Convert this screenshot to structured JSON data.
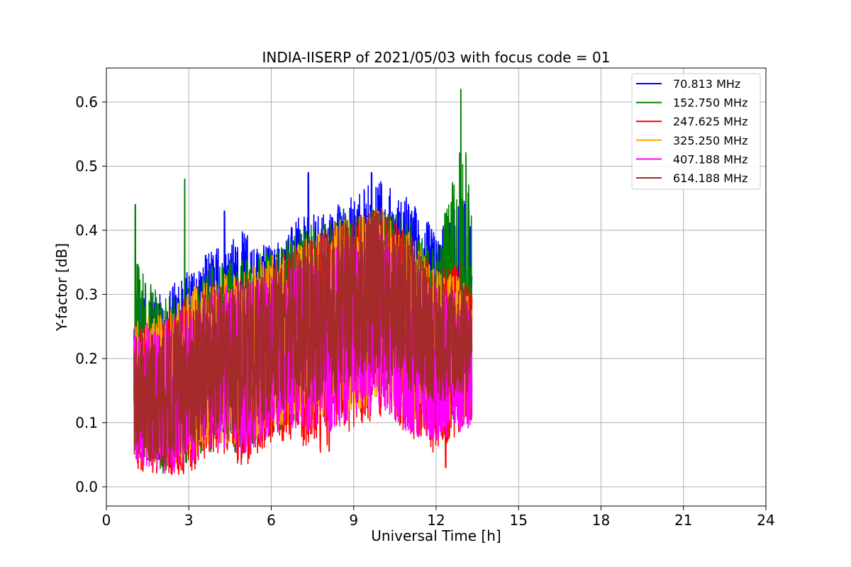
{
  "chart_data": {
    "type": "line",
    "title": "INDIA-IISERP of 2021/05/03 with focus code = 01",
    "xlabel": "Universal Time [h]",
    "ylabel": "Y-factor [dB]",
    "xlim": [
      0,
      24
    ],
    "ylim": [
      -0.03,
      0.653
    ],
    "x_ticks": [
      0,
      3,
      6,
      9,
      12,
      15,
      18,
      21,
      24
    ],
    "y_ticks": [
      0.0,
      0.1,
      0.2,
      0.3,
      0.4,
      0.5,
      0.6
    ],
    "y_tick_labels": [
      "0.0",
      "0.1",
      "0.2",
      "0.3",
      "0.4",
      "0.5",
      "0.6"
    ],
    "grid": true,
    "legend_position": "top-right",
    "x_range_of_data": [
      1.0,
      13.3
    ],
    "series": [
      {
        "name": "70.813 MHz",
        "color": "#0000ff",
        "profile_x": [
          1.0,
          2.0,
          3.0,
          4.0,
          5.0,
          6.0,
          7.0,
          8.0,
          9.0,
          10.0,
          11.0,
          12.0,
          13.0,
          13.3
        ],
        "upper_envelope": [
          0.33,
          0.3,
          0.34,
          0.38,
          0.4,
          0.38,
          0.42,
          0.43,
          0.46,
          0.48,
          0.45,
          0.4,
          0.45,
          0.42
        ],
        "lower_envelope": [
          0.05,
          0.03,
          0.04,
          0.07,
          0.09,
          0.11,
          0.12,
          0.14,
          0.15,
          0.17,
          0.15,
          0.12,
          0.1,
          0.13
        ],
        "peaks": [
          {
            "x": 7.35,
            "y": 0.49
          },
          {
            "x": 9.65,
            "y": 0.49
          },
          {
            "x": 4.3,
            "y": 0.43
          }
        ],
        "min": 0.0
      },
      {
        "name": "152.750 MHz",
        "color": "#008000",
        "profile_x": [
          1.0,
          2.0,
          3.0,
          4.0,
          5.0,
          6.0,
          7.0,
          8.0,
          9.0,
          10.0,
          11.0,
          12.0,
          13.0,
          13.3
        ],
        "upper_envelope": [
          0.36,
          0.3,
          0.31,
          0.35,
          0.36,
          0.37,
          0.4,
          0.42,
          0.43,
          0.44,
          0.42,
          0.37,
          0.55,
          0.45
        ],
        "lower_envelope": [
          0.05,
          0.02,
          0.03,
          0.06,
          0.04,
          0.08,
          0.1,
          0.1,
          0.13,
          0.15,
          0.13,
          0.11,
          0.1,
          0.14
        ],
        "peaks": [
          {
            "x": 12.9,
            "y": 0.62
          },
          {
            "x": 1.05,
            "y": 0.44
          },
          {
            "x": 2.85,
            "y": 0.48
          }
        ],
        "min": 0.0
      },
      {
        "name": "247.625 MHz",
        "color": "#ff0000",
        "profile_x": [
          1.0,
          2.0,
          3.0,
          4.0,
          5.0,
          6.0,
          7.0,
          8.0,
          9.0,
          10.0,
          11.0,
          12.0,
          13.0,
          13.3
        ],
        "upper_envelope": [
          0.26,
          0.26,
          0.3,
          0.32,
          0.33,
          0.35,
          0.38,
          0.4,
          0.42,
          0.43,
          0.4,
          0.34,
          0.35,
          0.3
        ],
        "lower_envelope": [
          0.03,
          0.01,
          0.02,
          0.05,
          0.03,
          0.07,
          0.06,
          0.05,
          0.09,
          0.11,
          0.08,
          0.05,
          0.09,
          0.1
        ],
        "peaks": [
          {
            "x": 12.35,
            "y": 0.03
          }
        ],
        "min": 0.0
      },
      {
        "name": "325.250 MHz",
        "color": "#ffa500",
        "profile_x": [
          1.0,
          2.0,
          3.0,
          4.0,
          5.0,
          6.0,
          7.0,
          8.0,
          9.0,
          10.0,
          11.0,
          12.0,
          13.0,
          13.3
        ],
        "upper_envelope": [
          0.26,
          0.27,
          0.31,
          0.33,
          0.34,
          0.36,
          0.38,
          0.41,
          0.43,
          0.43,
          0.4,
          0.34,
          0.33,
          0.3
        ],
        "lower_envelope": [
          0.05,
          0.03,
          0.04,
          0.07,
          0.06,
          0.09,
          0.1,
          0.1,
          0.12,
          0.13,
          0.11,
          0.09,
          0.1,
          0.12
        ],
        "peaks": [],
        "min": 0.03
      },
      {
        "name": "407.188 MHz",
        "color": "#ff00ff",
        "profile_x": [
          1.0,
          2.0,
          3.0,
          4.0,
          5.0,
          6.0,
          7.0,
          8.0,
          9.0,
          10.0,
          11.0,
          12.0,
          13.0,
          13.3
        ],
        "upper_envelope": [
          0.25,
          0.26,
          0.28,
          0.31,
          0.32,
          0.33,
          0.35,
          0.37,
          0.38,
          0.4,
          0.36,
          0.31,
          0.3,
          0.28
        ],
        "lower_envelope": [
          0.04,
          0.02,
          0.03,
          0.06,
          0.05,
          0.08,
          0.09,
          0.08,
          0.11,
          0.12,
          0.08,
          0.07,
          0.08,
          0.1
        ],
        "peaks": [],
        "min": 0.0
      },
      {
        "name": "614.188 MHz",
        "color": "#a52a2a",
        "profile_x": [
          1.0,
          2.0,
          3.0,
          4.0,
          5.0,
          6.0,
          7.0,
          8.0,
          9.0,
          10.0,
          11.0,
          12.0,
          13.0,
          13.3
        ],
        "upper_envelope": [
          0.24,
          0.25,
          0.29,
          0.31,
          0.32,
          0.35,
          0.38,
          0.4,
          0.42,
          0.44,
          0.39,
          0.33,
          0.32,
          0.29
        ],
        "lower_envelope": [
          0.05,
          0.03,
          0.05,
          0.08,
          0.08,
          0.11,
          0.13,
          0.13,
          0.16,
          0.18,
          0.15,
          0.13,
          0.14,
          0.15
        ],
        "peaks": [],
        "min": 0.02
      }
    ]
  }
}
